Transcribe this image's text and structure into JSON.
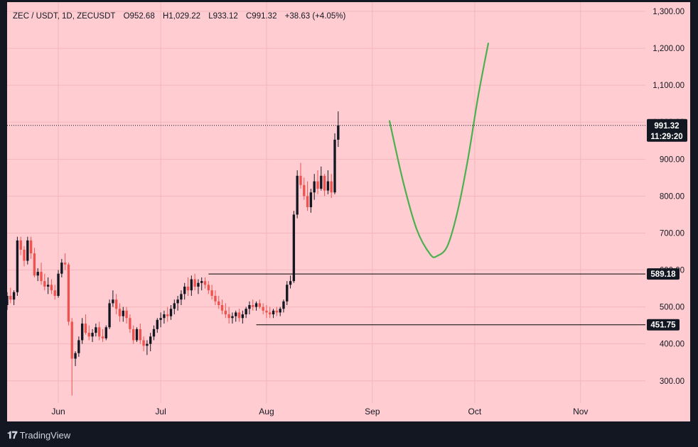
{
  "legend": {
    "symbol": "ZEC / USDT, 1D, ZECUSDT",
    "open": "O952.68",
    "high": "H1,029.22",
    "low": "L933.12",
    "close": "C991.32",
    "change": "+38.63 (+4.05%)"
  },
  "footer": {
    "brand": "TradingView"
  },
  "colors": {
    "background": "#ffcdd1",
    "up": "#131722",
    "down": "#ef5350",
    "projection": "#4caf50",
    "level_line": "#000000"
  },
  "chart_data": {
    "type": "candlestick",
    "yaxis": {
      "ticks": [
        "1,300.00",
        "1,200.00",
        "1,100.00",
        "1,000.00",
        "900.00",
        "800.00",
        "700.00",
        "600.00",
        "500.00",
        "400.00",
        "300.00"
      ],
      "tick_values": [
        1300,
        1200,
        1100,
        1000,
        900,
        800,
        700,
        600,
        500,
        400,
        300
      ],
      "ylim": [
        240,
        1325
      ]
    },
    "xaxis": {
      "ticks": [
        "Jun",
        "Jul",
        "Aug",
        "Sep",
        "Oct",
        "Nov"
      ],
      "tick_dates": [
        "2025-06-01",
        "2025-07-01",
        "2025-08-01",
        "2025-09-01",
        "2025-10-01",
        "2025-11-01"
      ],
      "xlim": [
        "2025-05-17",
        "2025-11-20"
      ]
    },
    "last_price": {
      "value": 991.32,
      "label": "991.32",
      "countdown": "11:29:20"
    },
    "levels": [
      {
        "value": 589.18,
        "label": "589.18",
        "from": "2025-07-15"
      },
      {
        "value": 451.75,
        "label": "451.75",
        "from": "2025-07-29"
      }
    ],
    "projection_curve": [
      {
        "date": "2025-09-06",
        "value": 1005
      },
      {
        "date": "2025-09-10",
        "value": 840
      },
      {
        "date": "2025-09-14",
        "value": 710
      },
      {
        "date": "2025-09-18",
        "value": 642
      },
      {
        "date": "2025-09-20",
        "value": 638
      },
      {
        "date": "2025-09-23",
        "value": 665
      },
      {
        "date": "2025-09-26",
        "value": 760
      },
      {
        "date": "2025-09-29",
        "value": 900
      },
      {
        "date": "2025-10-02",
        "value": 1070
      },
      {
        "date": "2025-10-05",
        "value": 1215
      }
    ],
    "start_date": "2025-05-17",
    "candles": [
      [
        505,
        540,
        492,
        530
      ],
      [
        530,
        552,
        510,
        520
      ],
      [
        520,
        545,
        505,
        540
      ],
      [
        540,
        690,
        530,
        680
      ],
      [
        680,
        690,
        640,
        655
      ],
      [
        655,
        665,
        610,
        625
      ],
      [
        625,
        690,
        615,
        680
      ],
      [
        680,
        690,
        630,
        645
      ],
      [
        645,
        660,
        580,
        585
      ],
      [
        585,
        605,
        570,
        595
      ],
      [
        595,
        620,
        560,
        570
      ],
      [
        570,
        590,
        545,
        555
      ],
      [
        555,
        580,
        535,
        560
      ],
      [
        560,
        575,
        535,
        545
      ],
      [
        545,
        560,
        520,
        530
      ],
      [
        530,
        600,
        525,
        590
      ],
      [
        590,
        630,
        580,
        620
      ],
      [
        620,
        645,
        600,
        615
      ],
      [
        615,
        620,
        450,
        460
      ],
      [
        460,
        470,
        260,
        360
      ],
      [
        360,
        380,
        340,
        375
      ],
      [
        375,
        420,
        365,
        410
      ],
      [
        410,
        470,
        400,
        455
      ],
      [
        455,
        480,
        425,
        430
      ],
      [
        430,
        450,
        410,
        420
      ],
      [
        420,
        440,
        405,
        430
      ],
      [
        430,
        455,
        420,
        445
      ],
      [
        445,
        460,
        410,
        420
      ],
      [
        420,
        440,
        405,
        415
      ],
      [
        415,
        450,
        410,
        445
      ],
      [
        445,
        520,
        440,
        510
      ],
      [
        510,
        545,
        500,
        520
      ],
      [
        520,
        535,
        480,
        495
      ],
      [
        495,
        510,
        460,
        475
      ],
      [
        475,
        500,
        460,
        490
      ],
      [
        490,
        500,
        455,
        470
      ],
      [
        470,
        480,
        430,
        440
      ],
      [
        440,
        450,
        400,
        410
      ],
      [
        410,
        445,
        405,
        440
      ],
      [
        440,
        455,
        400,
        410
      ],
      [
        410,
        420,
        380,
        395
      ],
      [
        395,
        410,
        370,
        400
      ],
      [
        400,
        430,
        380,
        420
      ],
      [
        420,
        450,
        410,
        440
      ],
      [
        440,
        470,
        430,
        465
      ],
      [
        465,
        485,
        445,
        470
      ],
      [
        470,
        490,
        455,
        480
      ],
      [
        480,
        500,
        460,
        475
      ],
      [
        475,
        505,
        465,
        495
      ],
      [
        495,
        520,
        480,
        510
      ],
      [
        510,
        530,
        490,
        520
      ],
      [
        520,
        545,
        505,
        535
      ],
      [
        535,
        565,
        520,
        555
      ],
      [
        555,
        580,
        530,
        545
      ],
      [
        545,
        585,
        530,
        575
      ],
      [
        575,
        590,
        545,
        555
      ],
      [
        555,
        575,
        535,
        565
      ],
      [
        565,
        580,
        545,
        570
      ],
      [
        570,
        580,
        550,
        560
      ],
      [
        560,
        570,
        535,
        545
      ],
      [
        545,
        560,
        520,
        530
      ],
      [
        530,
        545,
        505,
        515
      ],
      [
        515,
        530,
        495,
        505
      ],
      [
        505,
        520,
        480,
        490
      ],
      [
        490,
        510,
        470,
        480
      ],
      [
        480,
        500,
        455,
        470
      ],
      [
        470,
        485,
        455,
        475
      ],
      [
        475,
        490,
        460,
        485
      ],
      [
        485,
        495,
        460,
        470
      ],
      [
        470,
        490,
        455,
        480
      ],
      [
        480,
        500,
        470,
        495
      ],
      [
        495,
        515,
        480,
        505
      ],
      [
        505,
        520,
        490,
        500
      ],
      [
        500,
        515,
        490,
        510
      ],
      [
        510,
        520,
        495,
        500
      ],
      [
        500,
        510,
        480,
        490
      ],
      [
        490,
        505,
        470,
        485
      ],
      [
        485,
        500,
        470,
        480
      ],
      [
        480,
        495,
        470,
        490
      ],
      [
        490,
        500,
        475,
        485
      ],
      [
        485,
        500,
        475,
        495
      ],
      [
        495,
        520,
        485,
        515
      ],
      [
        515,
        570,
        505,
        560
      ],
      [
        560,
        585,
        550,
        570
      ],
      [
        570,
        760,
        565,
        750
      ],
      [
        750,
        870,
        740,
        855
      ],
      [
        855,
        890,
        820,
        830
      ],
      [
        830,
        850,
        790,
        800
      ],
      [
        800,
        840,
        760,
        770
      ],
      [
        770,
        820,
        755,
        810
      ],
      [
        810,
        860,
        790,
        840
      ],
      [
        840,
        870,
        805,
        820
      ],
      [
        820,
        880,
        815,
        855
      ],
      [
        855,
        860,
        800,
        815
      ],
      [
        815,
        870,
        805,
        840
      ],
      [
        840,
        860,
        795,
        810
      ],
      [
        810,
        970,
        805,
        952.68
      ],
      [
        952.68,
        1029.22,
        933.12,
        991.32
      ]
    ]
  }
}
